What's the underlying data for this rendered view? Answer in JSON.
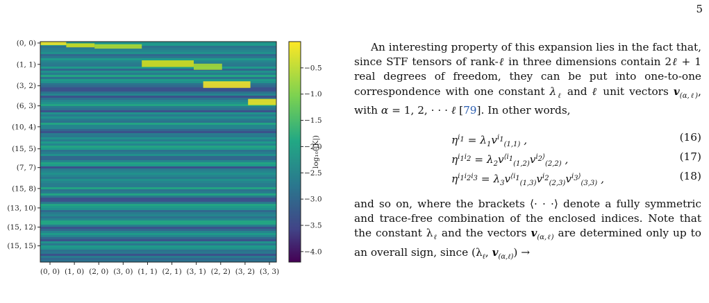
{
  "page_number": "5",
  "figure": {
    "y_tick_labels": [
      "(0, 0)",
      "(1, 1)",
      "(3, 2)",
      "(6, 3)",
      "(10, 4)",
      "(15, 5)",
      "(7, 7)",
      "(15, 8)",
      "(13, 10)",
      "(15, 12)",
      "(15, 15)"
    ],
    "x_tick_labels": [
      "(0, 0)",
      "(1, 0)",
      "(2, 0)",
      "(3, 0)",
      "(1, 1)",
      "(2, 1)",
      "(3, 1)",
      "(2, 2)",
      "(3, 2)",
      "(3, 3)"
    ],
    "colorbar_ticks": [
      "−0.5",
      "−1.0",
      "−1.5",
      "−2.0",
      "−2.5",
      "−3.0",
      "−3.5",
      "−4.0"
    ],
    "colorbar_label": "log₁₀(|K|)",
    "colors": {
      "high": "#fde725",
      "mid": "#21918c",
      "low": "#440154"
    }
  },
  "chart_data": {
    "type": "heatmap",
    "x_categories": [
      "(0, 0)",
      "(1, 0)",
      "(2, 0)",
      "(3, 0)",
      "(1, 1)",
      "(2, 1)",
      "(3, 1)",
      "(2, 2)",
      "(3, 2)",
      "(3, 3)"
    ],
    "y_categories": [
      "(0, 0)",
      "(1, 1)",
      "(3, 2)",
      "(6, 3)",
      "(10, 4)",
      "(15, 5)",
      "(7, 7)",
      "(15, 8)",
      "(13, 10)",
      "(15, 12)",
      "(15, 15)"
    ],
    "colorbar_label": "log₁₀(|K|)",
    "colorbar_range": [
      -4.2,
      0
    ],
    "colormap": "viridis"
  },
  "text": {
    "para1_a": "An interesting property of this expansion lies in the fact that, since STF tensors of rank-",
    "para1_b": " in three dimensions contain 2",
    "para1_c": " + 1 real degrees of freedom, they can be put into one-to-one correspondence with one constant ",
    "para1_d": " and ",
    "para1_e": " unit vectors ",
    "para1_f": ", with ",
    "para1_g": " = 1, 2, · · · ",
    "para1_h": " [",
    "cite": "79",
    "para1_i": "].  In other words,",
    "eq16_num": "(16)",
    "eq17_num": "(17)",
    "eq18_num": "(18)",
    "para2": "and so on, where the brackets ⟨· · ·⟩ denote a fully symmetric and trace-free combination of the enclosed indices. Note that the constant λ",
    "para2_b": " and the vectors ",
    "para2_c": " are determined only up to an overall sign, since (λ",
    "para2_d": ") →"
  }
}
